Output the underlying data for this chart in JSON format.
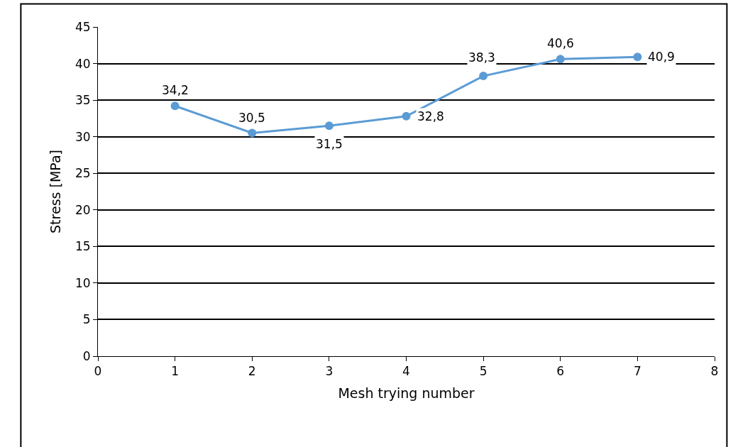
{
  "chart_data": {
    "type": "line",
    "xlabel": "Mesh trying number",
    "ylabel": "Stress [MPa]",
    "x": [
      1,
      2,
      3,
      4,
      5,
      6,
      7
    ],
    "series": [
      {
        "color": "#5b9bd5",
        "values": [
          34.2,
          30.5,
          31.5,
          32.8,
          38.3,
          40.6,
          40.9
        ],
        "value_labels": [
          "34,2",
          "30,5",
          "31,5",
          "32,8",
          "38,3",
          "40,6",
          "40,9"
        ]
      }
    ],
    "xlim": [
      0,
      8
    ],
    "xticks": [
      0,
      1,
      2,
      3,
      4,
      5,
      6,
      7,
      8
    ],
    "ylim": [
      0,
      45
    ],
    "yticks": [
      0,
      5,
      10,
      15,
      20,
      25,
      30,
      35,
      40,
      45
    ],
    "grid": "y",
    "legend": false,
    "marker": "circle",
    "line_style": "solid"
  }
}
